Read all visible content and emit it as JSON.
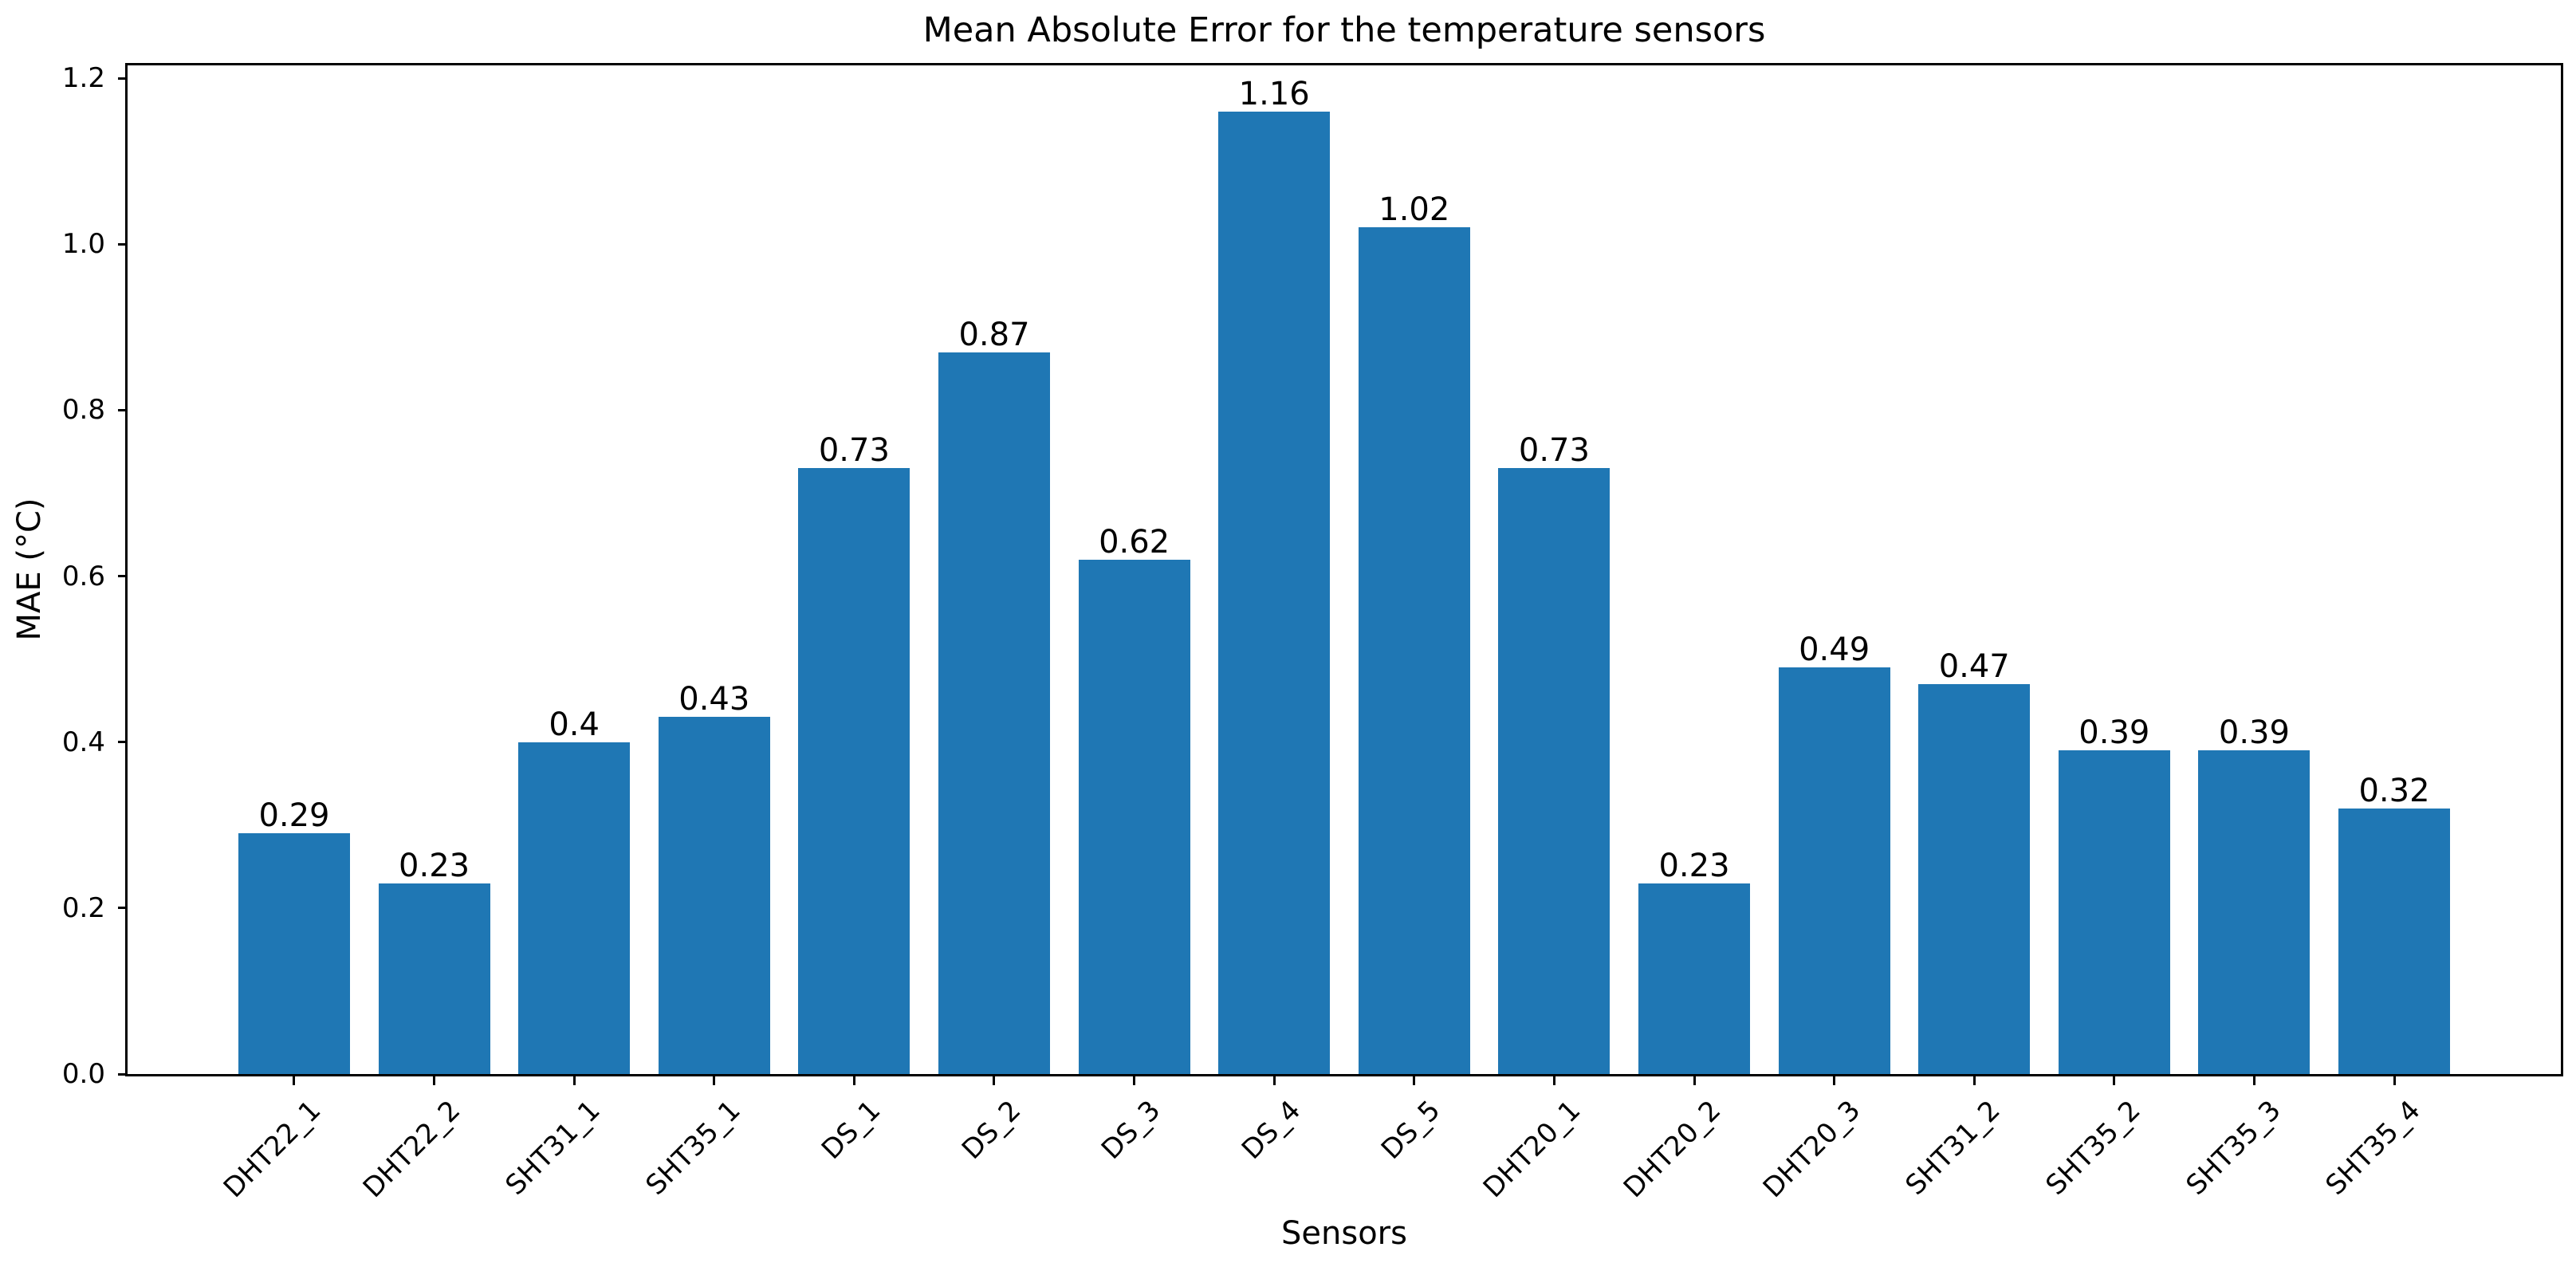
{
  "figure": {
    "background_color": "#ffffff",
    "text_color": "#000000",
    "spine_color": "#000000"
  },
  "chart_data": {
    "type": "bar",
    "title": "Mean Absolute Error for the temperature sensors",
    "xlabel": "Sensors",
    "ylabel": "MAE (°C)",
    "categories": [
      "DHT22_1",
      "DHT22_2",
      "SHT31_1",
      "SHT35_1",
      "DS_1",
      "DS_2",
      "DS_3",
      "DS_4",
      "DS_5",
      "DHT20_1",
      "DHT20_2",
      "DHT20_3",
      "SHT31_2",
      "SHT35_2",
      "SHT35_3",
      "SHT35_4"
    ],
    "values": [
      0.29,
      0.23,
      0.4,
      0.43,
      0.73,
      0.87,
      0.62,
      1.16,
      1.02,
      0.73,
      0.23,
      0.49,
      0.47,
      0.39,
      0.39,
      0.32
    ],
    "bar_value_labels": [
      "0.29",
      "0.23",
      "0.4",
      "0.43",
      "0.73",
      "0.87",
      "0.62",
      "1.16",
      "1.02",
      "0.73",
      "0.23",
      "0.49",
      "0.47",
      "0.39",
      "0.39",
      "0.32"
    ],
    "yticks": [
      0.0,
      0.2,
      0.4,
      0.6,
      0.8,
      1.0,
      1.2
    ],
    "ytick_labels": [
      "0.0",
      "0.2",
      "0.4",
      "0.6",
      "0.8",
      "1.0",
      "1.2"
    ],
    "ylim": [
      0,
      1.2154
    ],
    "x_tick_rotation_deg": -45,
    "grid": false,
    "legend": null,
    "bar_color": "#1f77b4"
  }
}
